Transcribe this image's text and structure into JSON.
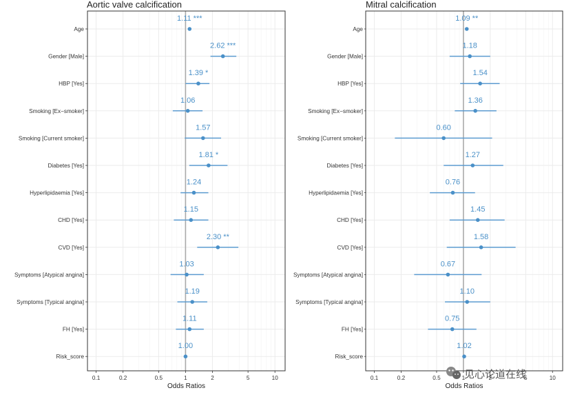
{
  "colors": {
    "point": "#4a90c8",
    "ci": "#5b9bd0",
    "label": "#4a90c8",
    "ref_line": "#aaaaaa",
    "grid": "#ebebeb",
    "panel_border": "#333333"
  },
  "watermark": "见心论道在线",
  "watermark_icon": "wechat-icon",
  "chart_data": [
    {
      "type": "scatter",
      "style": "forest-plot",
      "title": "Aortic valve calcification",
      "xlabel": "Odds Ratios",
      "xscale": "log",
      "xlim": [
        0.08,
        13
      ],
      "xticks": [
        0.1,
        0.2,
        0.5,
        1,
        2,
        5,
        10
      ],
      "xtick_labels": [
        "0.1",
        "0.2",
        "0.5",
        "1",
        "2",
        "5",
        "10"
      ],
      "reference": 1,
      "grid": true,
      "categories": [
        "Age",
        "Gender [Male]",
        "HBP [Yes]",
        "Smoking [Ex−smoker]",
        "Smoking [Current smoker]",
        "Diabetes [Yes]",
        "Hyperlipidaemia [Yes]",
        "CHD [Yes]",
        "CVD [Yes]",
        "Symptoms [Atypical angina]",
        "Symptoms [Typical angina]",
        "FH [Yes]",
        "Risk_score"
      ],
      "values": [
        1.11,
        2.62,
        1.39,
        1.06,
        1.57,
        1.81,
        1.24,
        1.15,
        2.3,
        1.03,
        1.19,
        1.11,
        1.0
      ],
      "lower": [
        1.09,
        1.9,
        1.0,
        0.72,
        0.98,
        1.1,
        0.88,
        0.74,
        1.35,
        0.68,
        0.81,
        0.78,
        0.99
      ],
      "upper": [
        1.13,
        3.7,
        1.85,
        1.55,
        2.5,
        2.95,
        1.8,
        1.8,
        3.9,
        1.6,
        1.75,
        1.6,
        1.01
      ],
      "labels": [
        "1.11 ***",
        "2.62 ***",
        "1.39 *",
        "1.06",
        "1.57",
        "1.81 *",
        "1.24",
        "1.15",
        "2.30 **",
        "1.03",
        "1.19",
        "1.11",
        "1.00"
      ]
    },
    {
      "type": "scatter",
      "style": "forest-plot",
      "title": "Mitral calcification",
      "xlabel": "Odds Ratios",
      "xscale": "log",
      "xlim": [
        0.08,
        13
      ],
      "xticks": [
        0.1,
        0.2,
        0.5,
        1,
        2,
        5,
        10
      ],
      "xtick_labels": [
        "0.1",
        "0.2",
        "0.5",
        "1",
        "2",
        "5",
        "10"
      ],
      "reference": 1,
      "grid": true,
      "categories": [
        "Age",
        "Gender [Male]",
        "HBP [Yes]",
        "Smoking [Ex−smoker]",
        "Smoking [Current smoker]",
        "Diabetes [Yes]",
        "Hyperlipidaemia [Yes]",
        "CHD [Yes]",
        "CVD [Yes]",
        "Symptoms [Atypical angina]",
        "Symptoms [Typical angina]",
        "FH [Yes]",
        "Risk_score"
      ],
      "values": [
        1.09,
        1.18,
        1.54,
        1.36,
        0.6,
        1.27,
        0.76,
        1.45,
        1.58,
        0.67,
        1.1,
        0.75,
        1.02
      ],
      "lower": [
        1.05,
        0.7,
        0.92,
        0.8,
        0.17,
        0.6,
        0.42,
        0.7,
        0.65,
        0.28,
        0.62,
        0.4,
        1.0
      ],
      "upper": [
        1.13,
        2.0,
        2.55,
        2.35,
        2.1,
        2.8,
        1.35,
        2.9,
        3.85,
        1.6,
        2.0,
        1.4,
        1.04
      ],
      "labels": [
        "1.09 **",
        "1.18",
        "1.54",
        "1.36",
        "0.60",
        "1.27",
        "0.76",
        "1.45",
        "1.58",
        "0.67",
        "1.10",
        "0.75",
        "1.02"
      ]
    }
  ]
}
